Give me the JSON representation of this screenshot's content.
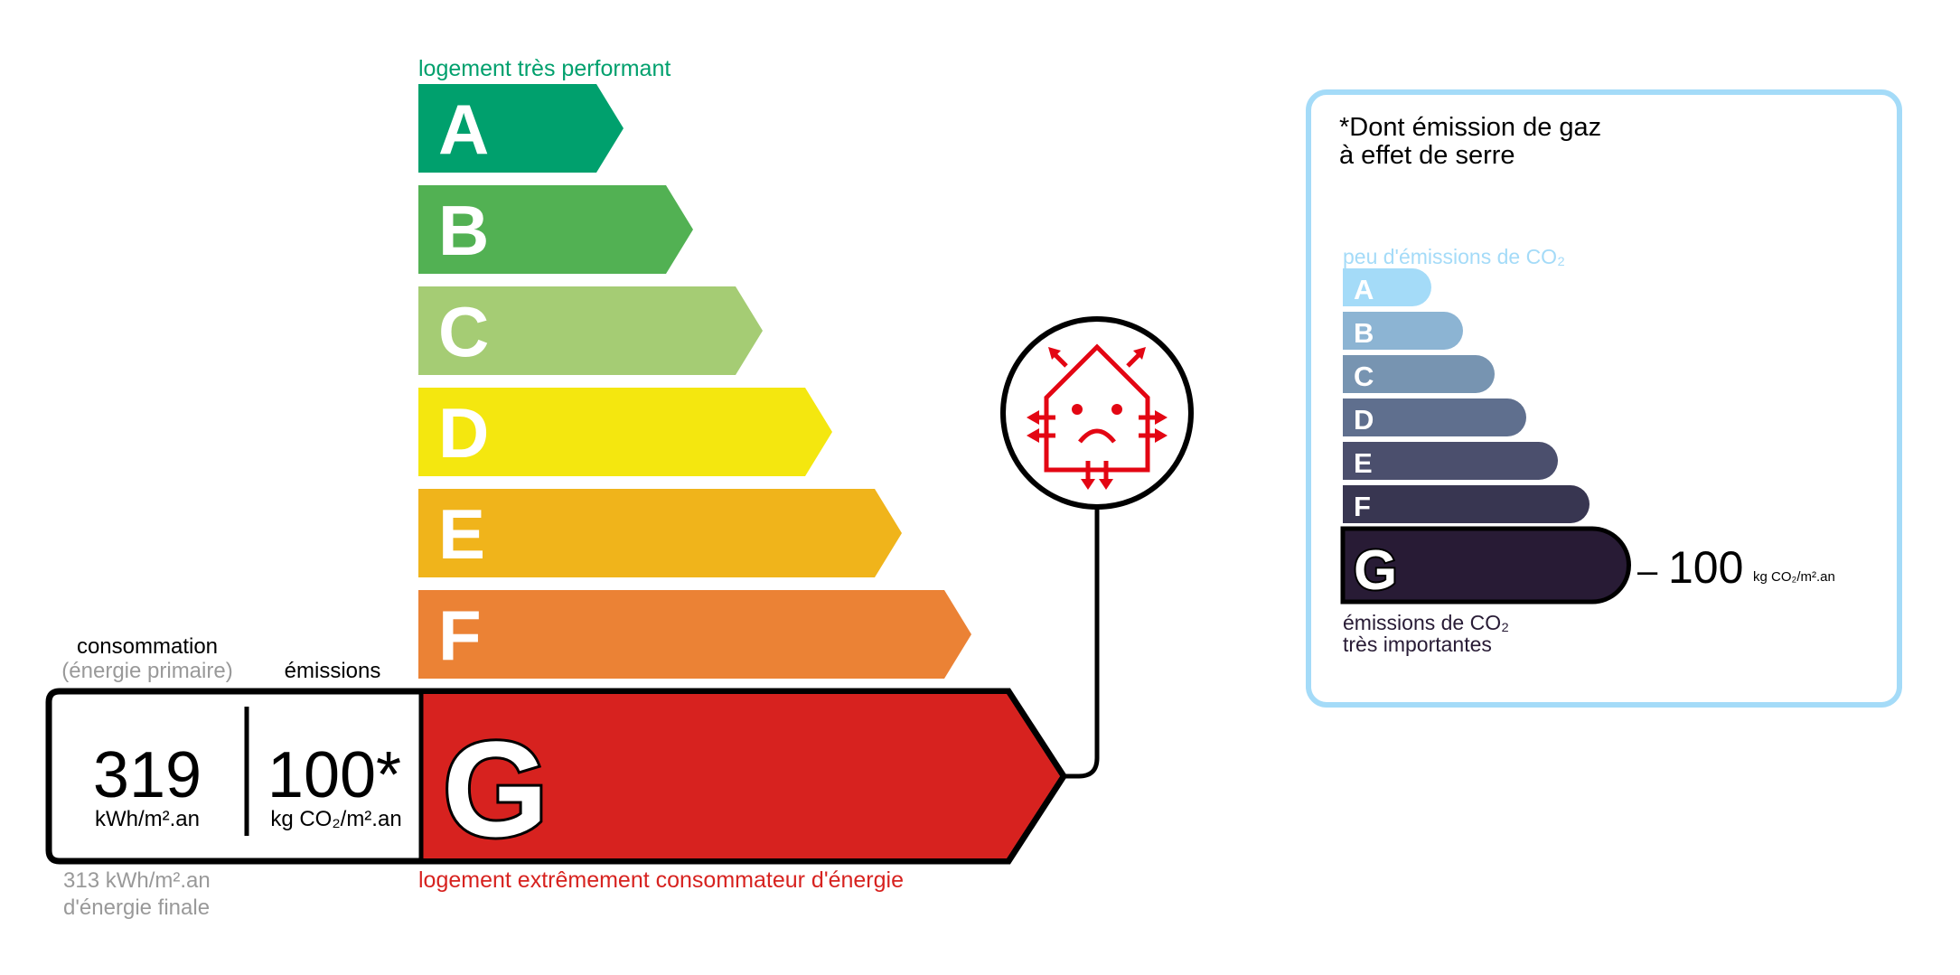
{
  "dpe": {
    "top_label": "logement très performant",
    "bottom_label": "logement extrêmement consommateur d'énergie",
    "classes": [
      {
        "letter": "A",
        "color": "#00a06d"
      },
      {
        "letter": "B",
        "color": "#52b153"
      },
      {
        "letter": "C",
        "color": "#a5cc74"
      },
      {
        "letter": "D",
        "color": "#f4e70f"
      },
      {
        "letter": "E",
        "color": "#f0b41b"
      },
      {
        "letter": "F",
        "color": "#eb8235"
      },
      {
        "letter": "G",
        "color": "#d7221f"
      }
    ],
    "current_class": "G",
    "consumption_header": "consommation",
    "consumption_subheader": "(énergie primaire)",
    "emissions_header": "émissions",
    "consumption_value": "319",
    "consumption_unit": "kWh/m².an",
    "emissions_value": "100*",
    "emissions_unit": "kg CO₂/m².an",
    "final_energy_line1": "313 kWh/m².an",
    "final_energy_line2": "d'énergie finale",
    "alert_icon": "house-passoire-sad-face-icon",
    "alert_color": "#e30613"
  },
  "ges": {
    "title_line1": "*Dont émission de gaz",
    "title_line2": "à effet de serre",
    "top_label": "peu d'émissions de CO₂",
    "bottom_label_line1": "émissions de CO₂",
    "bottom_label_line2": "très importantes",
    "border_color": "#a4dbf8",
    "classes": [
      {
        "letter": "A",
        "color": "#a4dbf8"
      },
      {
        "letter": "B",
        "color": "#8cb4d3"
      },
      {
        "letter": "C",
        "color": "#7794b1"
      },
      {
        "letter": "D",
        "color": "#5f6f8e"
      },
      {
        "letter": "E",
        "color": "#4b4f6d"
      },
      {
        "letter": "F",
        "color": "#383651"
      },
      {
        "letter": "G",
        "color": "#281b35"
      }
    ],
    "current_class": "G",
    "value": "100",
    "unit": "kg CO₂/m².an"
  }
}
